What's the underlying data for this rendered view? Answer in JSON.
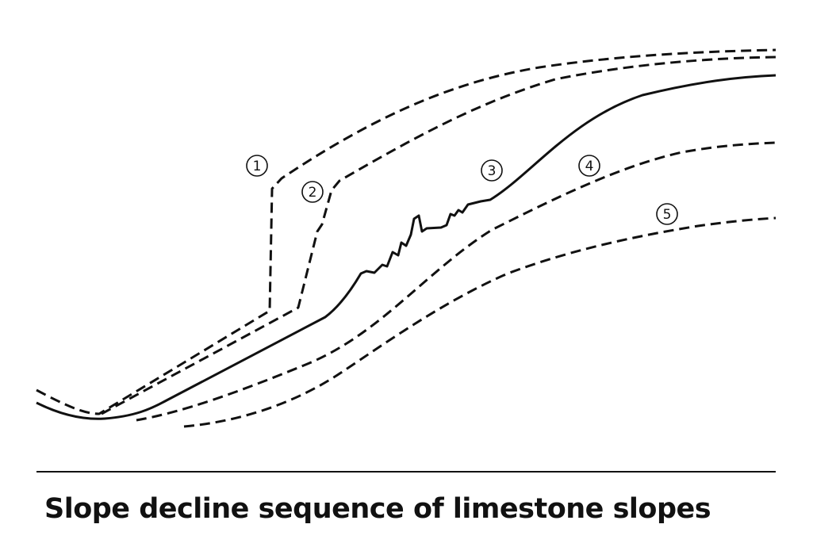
{
  "caption": "Slope decline sequence of limestone slopes",
  "stages": [
    {
      "label": "1",
      "line_style": "dashed"
    },
    {
      "label": "2",
      "line_style": "dashed"
    },
    {
      "label": "3",
      "line_style": "solid"
    },
    {
      "label": "4",
      "line_style": "dashed"
    },
    {
      "label": "5",
      "line_style": "dashed"
    }
  ],
  "colors": {
    "ink": "#111111",
    "background": "#ffffff"
  }
}
